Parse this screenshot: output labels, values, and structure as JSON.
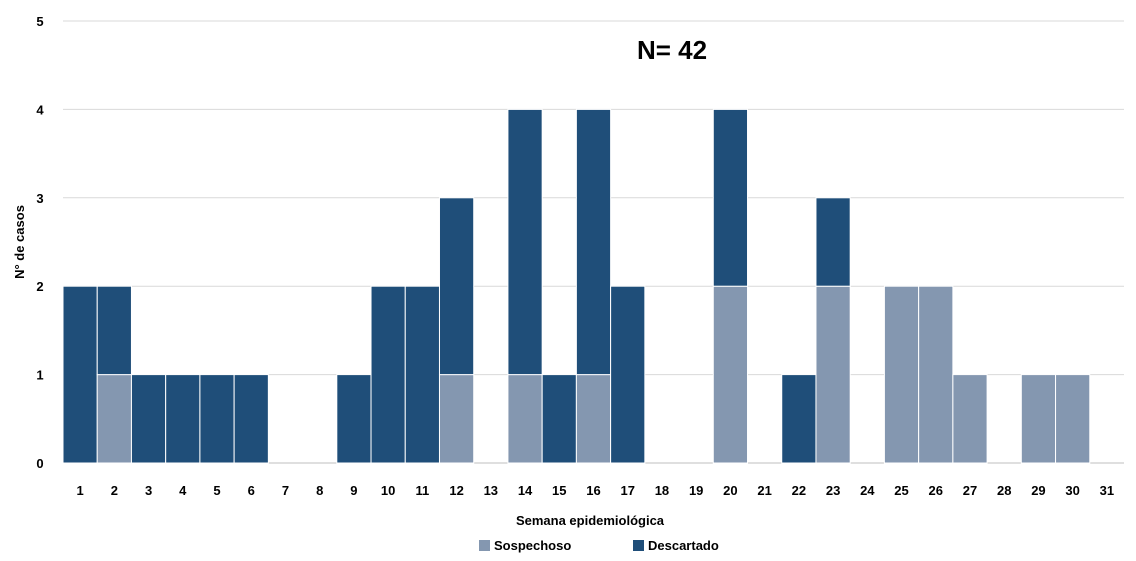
{
  "chart_data": {
    "type": "bar",
    "stacked": true,
    "annotation": "N= 42",
    "xlabel": "Semana epidemiológica",
    "ylabel": "N° de casos",
    "ylim": [
      0,
      5
    ],
    "yticks": [
      0,
      1,
      2,
      3,
      4,
      5
    ],
    "grid": "horizontal",
    "legend_position": "bottom",
    "categories": [
      "1",
      "2",
      "3",
      "4",
      "5",
      "6",
      "7",
      "8",
      "9",
      "10",
      "11",
      "12",
      "13",
      "14",
      "15",
      "16",
      "17",
      "18",
      "19",
      "20",
      "21",
      "22",
      "23",
      "24",
      "25",
      "26",
      "27",
      "28",
      "29",
      "30",
      "31"
    ],
    "series": [
      {
        "name": "Sospechoso",
        "color": "#8497b0",
        "values": [
          0,
          1,
          0,
          0,
          0,
          0,
          0,
          0,
          0,
          0,
          0,
          1,
          0,
          1,
          0,
          1,
          0,
          0,
          0,
          2,
          0,
          0,
          2,
          0,
          2,
          2,
          1,
          0,
          1,
          1,
          0
        ]
      },
      {
        "name": "Descartado",
        "color": "#1f4e79",
        "values": [
          2,
          1,
          1,
          1,
          1,
          1,
          0,
          0,
          1,
          2,
          2,
          2,
          0,
          3,
          1,
          3,
          2,
          0,
          0,
          2,
          0,
          1,
          1,
          0,
          0,
          0,
          0,
          0,
          0,
          0,
          0
        ]
      }
    ]
  }
}
